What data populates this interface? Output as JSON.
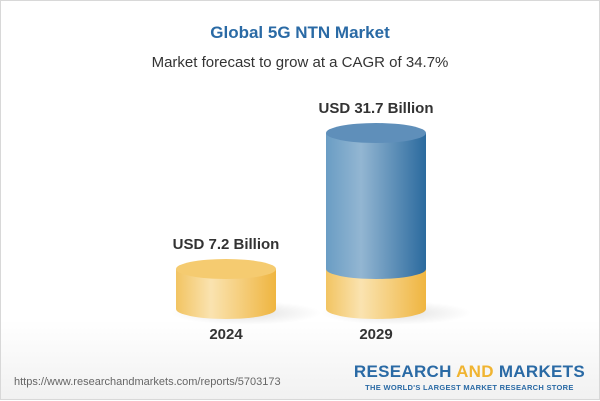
{
  "chart_data": {
    "type": "bar",
    "style": "3d-cylinder",
    "title": "Global 5G NTN Market",
    "subtitle": "Market forecast to grow at a CAGR of 34.7%",
    "categories": [
      "2024",
      "2029"
    ],
    "values": [
      7.2,
      31.7
    ],
    "data_labels": [
      "USD 7.2 Billion",
      "USD 31.7 Billion"
    ],
    "unit": "USD Billion",
    "colors": {
      "base": "#f3c25a",
      "growth": "#3d78aa",
      "title": "#2a6aa5"
    }
  },
  "footer": {
    "url": "https://www.researchandmarkets.com/reports/5703173",
    "logo_part1": "RESEARCH ",
    "logo_part2": "AND",
    "logo_part3": " MARKETS",
    "tagline": "THE WORLD'S LARGEST MARKET RESEARCH STORE"
  }
}
